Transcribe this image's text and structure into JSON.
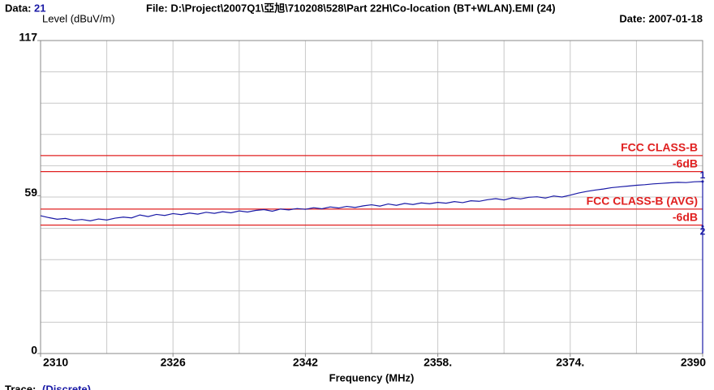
{
  "chart_data": {
    "type": "line",
    "header": {
      "data_label": "Data:",
      "data_number": "21",
      "file": "File: D:\\Project\\2007Q1\\亞旭\\710208\\528\\Part 22H\\Co-location (BT+WLAN).EMI  (24)",
      "date": "Date: 2007-01-18"
    },
    "y_label": "Level (dBuV/m)",
    "x_label": "Frequency (MHz)",
    "footer": {
      "trace_label": "Trace:",
      "trace_value": "(Discrete)"
    },
    "xlim": [
      2310,
      2390
    ],
    "ylim": [
      0,
      117
    ],
    "xticks": [
      2310,
      2326,
      2342,
      {
        "value": 2358,
        "label": "2358."
      },
      {
        "value": 2374,
        "label": "2374."
      },
      2390
    ],
    "yticks": [
      0,
      59,
      117
    ],
    "color": "#1a1aa6",
    "x": [
      2310,
      2311,
      2312,
      2313,
      2314,
      2315,
      2316,
      2317,
      2318,
      2319,
      2320,
      2321,
      2322,
      2323,
      2324,
      2325,
      2326,
      2327,
      2328,
      2329,
      2330,
      2331,
      2332,
      2333,
      2334,
      2335,
      2336,
      2337,
      2338,
      2339,
      2340,
      2341,
      2342,
      2343,
      2344,
      2345,
      2346,
      2347,
      2348,
      2349,
      2350,
      2351,
      2352,
      2353,
      2354,
      2355,
      2356,
      2357,
      2358,
      2359,
      2360,
      2361,
      2362,
      2363,
      2364,
      2365,
      2366,
      2367,
      2368,
      2369,
      2370,
      2371,
      2372,
      2373,
      2374,
      2375,
      2376,
      2377,
      2378,
      2379,
      2380,
      2381,
      2382,
      2383,
      2384,
      2385,
      2386,
      2387,
      2388,
      2389,
      2390,
      2390
    ],
    "values": [
      51.5,
      50.8,
      50.2,
      50.5,
      49.8,
      50.1,
      49.6,
      50.3,
      49.9,
      50.6,
      51.0,
      50.7,
      51.8,
      51.2,
      52.0,
      51.6,
      52.3,
      51.9,
      52.5,
      52.1,
      52.8,
      52.4,
      53.0,
      52.6,
      53.3,
      52.9,
      53.5,
      53.8,
      53.2,
      54.0,
      53.7,
      54.2,
      53.9,
      54.5,
      54.1,
      54.8,
      54.4,
      55.0,
      54.6,
      55.2,
      55.6,
      55.1,
      55.9,
      55.4,
      56.1,
      55.7,
      56.3,
      56.0,
      56.5,
      56.2,
      56.8,
      56.4,
      57.1,
      56.9,
      57.5,
      57.9,
      57.4,
      58.2,
      57.8,
      58.4,
      58.6,
      58.1,
      58.9,
      58.5,
      59.2,
      60.0,
      60.6,
      61.1,
      61.5,
      62.0,
      62.3,
      62.6,
      62.9,
      63.1,
      63.4,
      63.6,
      63.8,
      64.0,
      63.9,
      64.2,
      64.3,
      0
    ],
    "limits": [
      {
        "label": "FCC CLASS-B",
        "value": 74,
        "color": "#e02020"
      },
      {
        "label": "-6dB",
        "value": 68,
        "color": "#e02020"
      },
      {
        "label": "FCC CLASS-B (AVG)",
        "value": 54,
        "color": "#e02020"
      },
      {
        "label": "-6dB",
        "value": 48,
        "color": "#e02020"
      }
    ],
    "markers": [
      {
        "label": "1",
        "x": 2390,
        "value": 64.3
      },
      {
        "label": "2",
        "x": 2390,
        "value": 47.5
      }
    ]
  }
}
